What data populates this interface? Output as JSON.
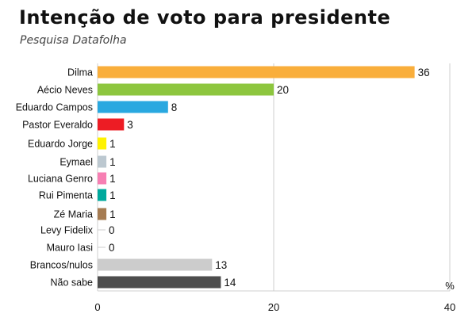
{
  "chart_data": {
    "type": "bar",
    "orientation": "horizontal",
    "title": "Intenção de voto para presidente",
    "subtitle": "Pesquisa Datafolha",
    "unit": "%",
    "xlim": [
      0,
      40
    ],
    "xticks": [
      "0",
      "20",
      "40"
    ],
    "grid": true,
    "categories": [
      "Dilma",
      "Aécio Neves",
      "Eduardo Campos",
      "Pastor Everaldo",
      "Eduardo Jorge",
      "Eymael",
      "Luciana Genro",
      "Rui Pimenta",
      "Zé Maria",
      "Levy Fidelix",
      "Mauro Iasi",
      "Brancos/nulos",
      "Não sabe"
    ],
    "values": [
      36,
      20,
      8,
      3,
      1,
      1,
      1,
      1,
      1,
      0,
      0,
      13,
      14
    ],
    "colors": [
      "#f9ae3b",
      "#8dc63f",
      "#29a8e0",
      "#ed1c24",
      "#fff200",
      "#bcc8d0",
      "#f77fb3",
      "#00a99d",
      "#a67c52",
      "#cccccc",
      "#cccccc",
      "#cccccc",
      "#4d4d4d"
    ]
  }
}
